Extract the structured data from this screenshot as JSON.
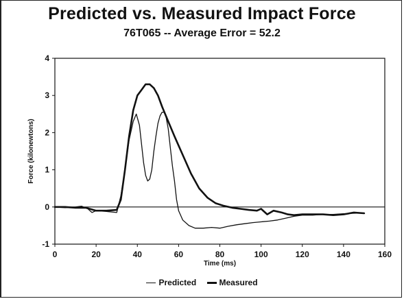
{
  "chart_data": {
    "type": "line",
    "title": "Predicted vs. Measured Impact Force",
    "subtitle": "76T065 -- Average Error = 52.2",
    "xlabel": "Time (ms)",
    "ylabel": "Force (kilonewtons)",
    "xlim": [
      0,
      160
    ],
    "ylim": [
      -1,
      4
    ],
    "xticks": [
      0,
      20,
      40,
      60,
      80,
      100,
      120,
      140,
      160
    ],
    "yticks": [
      -1,
      0,
      1,
      2,
      3,
      4
    ],
    "grid": false,
    "legend_position": "bottom",
    "series": [
      {
        "name": "Predicted",
        "style": "thin",
        "color": "#111111",
        "x": [
          0,
          5,
          10,
          13,
          16,
          18,
          20,
          25,
          30,
          32,
          34,
          36,
          38,
          39.5,
          41,
          42,
          43,
          44,
          45,
          46,
          47,
          48,
          49,
          50,
          51,
          52,
          53,
          54,
          55,
          56,
          57,
          58,
          59,
          60,
          62,
          65,
          68,
          72,
          76,
          80,
          84,
          88,
          92,
          96,
          100,
          104,
          108,
          112,
          116,
          120,
          125,
          130,
          135,
          140,
          145,
          150
        ],
        "y": [
          0,
          -0.02,
          0,
          0.02,
          -0.05,
          -0.15,
          -0.1,
          -0.12,
          -0.15,
          0.3,
          1.0,
          1.8,
          2.3,
          2.5,
          2.2,
          1.7,
          1.2,
          0.85,
          0.7,
          0.75,
          1.0,
          1.5,
          1.9,
          2.25,
          2.45,
          2.55,
          2.55,
          2.4,
          2.1,
          1.6,
          1.1,
          0.7,
          0.2,
          -0.1,
          -0.35,
          -0.5,
          -0.57,
          -0.57,
          -0.55,
          -0.57,
          -0.52,
          -0.48,
          -0.45,
          -0.42,
          -0.4,
          -0.38,
          -0.35,
          -0.3,
          -0.25,
          -0.22,
          -0.22,
          -0.2,
          -0.2,
          -0.18,
          -0.17,
          -0.16
        ]
      },
      {
        "name": "Measured",
        "style": "thick",
        "color": "#111111",
        "x": [
          0,
          5,
          10,
          15,
          20,
          25,
          30,
          32,
          34,
          36,
          38,
          40,
          42,
          44,
          46,
          48,
          50,
          52,
          55,
          58,
          62,
          66,
          70,
          74,
          78,
          82,
          86,
          90,
          94,
          98,
          100,
          103,
          106,
          110,
          113,
          116,
          120,
          125,
          130,
          135,
          140,
          145,
          150
        ],
        "y": [
          0,
          0,
          -0.02,
          -0.02,
          -0.1,
          -0.1,
          -0.08,
          0.2,
          1.0,
          1.9,
          2.6,
          3.0,
          3.15,
          3.3,
          3.3,
          3.2,
          3.0,
          2.7,
          2.3,
          1.9,
          1.4,
          0.9,
          0.5,
          0.25,
          0.1,
          0.03,
          -0.02,
          -0.05,
          -0.08,
          -0.1,
          -0.05,
          -0.2,
          -0.1,
          -0.15,
          -0.2,
          -0.22,
          -0.2,
          -0.2,
          -0.2,
          -0.22,
          -0.2,
          -0.15,
          -0.17
        ]
      }
    ]
  }
}
